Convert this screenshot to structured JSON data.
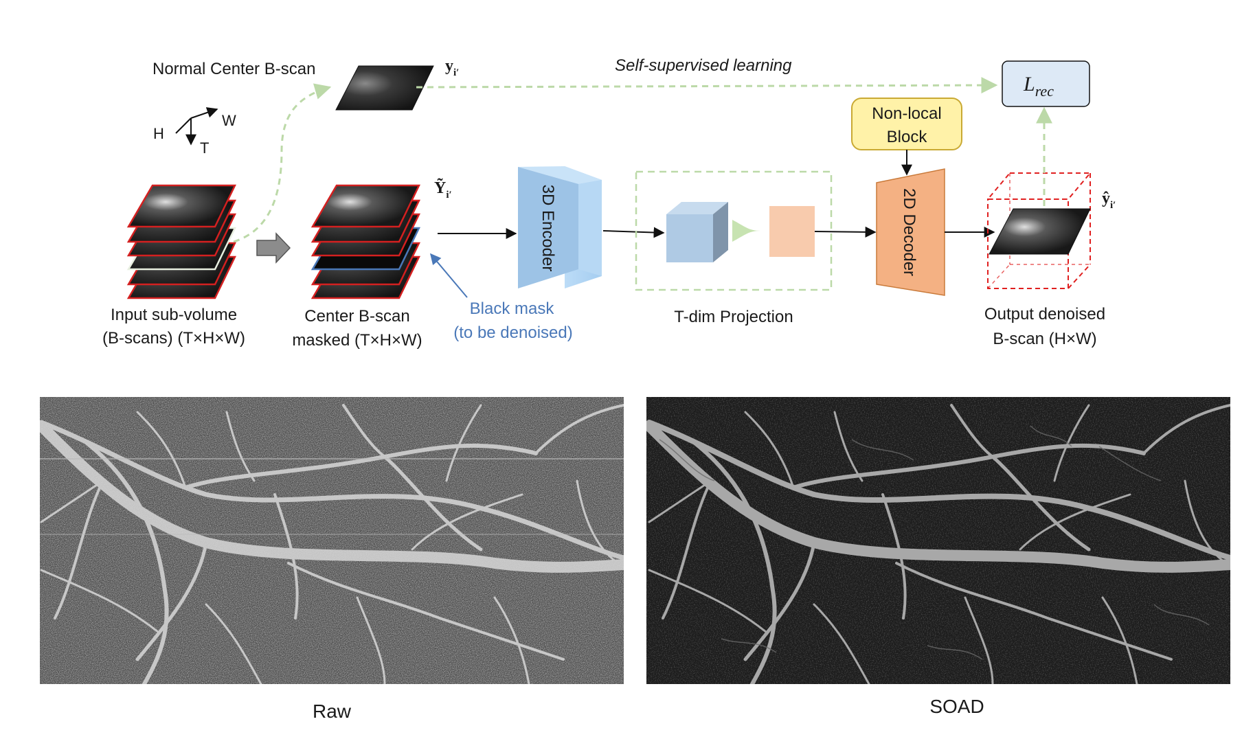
{
  "diagram": {
    "axes": {
      "h": "H",
      "w": "W",
      "t": "T"
    },
    "normal_center_label": "Normal Center B-scan",
    "y_label": "y",
    "y_sub": "i′",
    "ssl_label": "Self-supervised learning",
    "loss_label": "L",
    "loss_sub": "rec",
    "nonlocal_line1": "Non-local",
    "nonlocal_line2": "Block",
    "Y_label": "Ỹ",
    "Y_sub": "i′",
    "yhat_label": "ŷ",
    "yhat_sub": "i′",
    "encoder_label": "3D Encoder",
    "decoder_label": "2D Decoder",
    "input_line1": "Input sub-volume",
    "input_line2": "(B-scans) (T×H×W)",
    "masked_line1": "Center B-scan",
    "masked_line2": "masked (T×H×W)",
    "mask_line1": "Black mask",
    "mask_line2": "(to be denoised)",
    "projection_label": "T-dim Projection",
    "output_line1": "Output denoised",
    "output_line2": "B-scan (H×W)"
  },
  "images": {
    "raw_caption": "Raw",
    "soad_caption": "SOAD"
  },
  "colors": {
    "scan_border": "#d42020",
    "mask_border": "#4a78b8",
    "green_dash": "#bcd9a8",
    "encoder_fill": "#9dc3e6",
    "decoder_fill": "#f4b183",
    "nonlocal_fill": "#fff2a8",
    "loss_fill": "#dde9f6"
  }
}
